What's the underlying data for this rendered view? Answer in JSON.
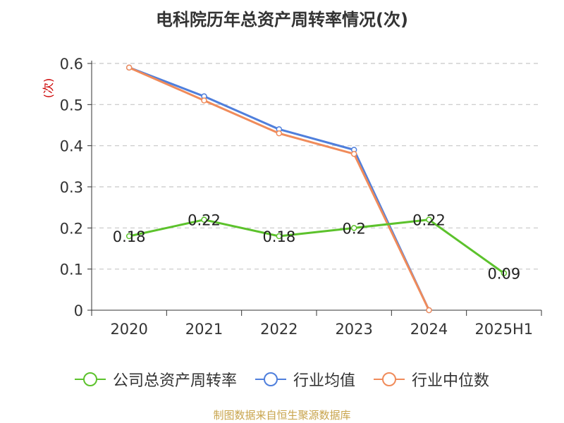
{
  "title": "电科院历年总资产周转率情况(次)",
  "source": "制图数据来自恒生聚源数据库",
  "chart_data": {
    "type": "line",
    "title": "电科院历年总资产周转率情况(次)",
    "xlabel": "",
    "ylabel": "(次)",
    "categories": [
      "2020",
      "2021",
      "2022",
      "2023",
      "2024",
      "2025H1"
    ],
    "ylim": [
      0,
      0.6
    ],
    "yticks": [
      "0",
      "0.1",
      "0.2",
      "0.3",
      "0.4",
      "0.5",
      "0.6"
    ],
    "grid": true,
    "legend_position": "bottom",
    "series": [
      {
        "name": "公司总资产周转率",
        "color": "#5cc22c",
        "values": [
          0.18,
          0.22,
          0.18,
          0.2,
          0.22,
          0.09
        ],
        "labels": [
          "0.18",
          "0.22",
          "0.18",
          "0.2",
          "0.22",
          "0.09"
        ]
      },
      {
        "name": "行业均值",
        "color": "#4f7fdc",
        "values": [
          0.59,
          0.52,
          0.44,
          0.39,
          0,
          null
        ]
      },
      {
        "name": "行业中位数",
        "color": "#f08b5a",
        "values": [
          0.59,
          0.51,
          0.43,
          0.38,
          0,
          null
        ]
      }
    ]
  }
}
